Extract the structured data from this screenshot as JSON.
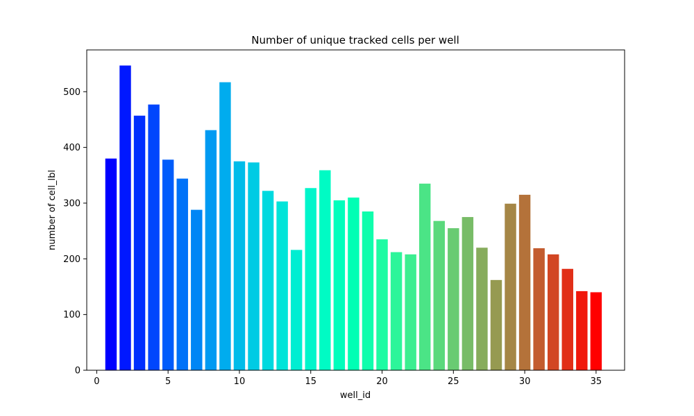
{
  "chart_data": {
    "type": "bar",
    "title": "Number of unique tracked cells per well",
    "xlabel": "well_id",
    "ylabel": "number of cell_lbl",
    "x": [
      1,
      2,
      3,
      4,
      5,
      6,
      7,
      8,
      9,
      10,
      11,
      12,
      13,
      14,
      15,
      16,
      17,
      18,
      19,
      20,
      21,
      22,
      23,
      24,
      25,
      26,
      27,
      28,
      29,
      30,
      31,
      32,
      33,
      34,
      35
    ],
    "values": [
      380,
      547,
      457,
      477,
      378,
      344,
      288,
      431,
      517,
      375,
      373,
      322,
      303,
      216,
      327,
      359,
      305,
      310,
      285,
      235,
      212,
      208,
      335,
      268,
      255,
      275,
      220,
      162,
      299,
      315,
      219,
      208,
      182,
      142,
      140
    ],
    "xlim": [
      -0.7,
      37
    ],
    "ylim": [
      0,
      575
    ],
    "xticks": [
      0,
      5,
      10,
      15,
      20,
      25,
      30,
      35
    ],
    "yticks": [
      0,
      100,
      200,
      300,
      400,
      500
    ],
    "colormap": "rainbow",
    "grid": false
  }
}
